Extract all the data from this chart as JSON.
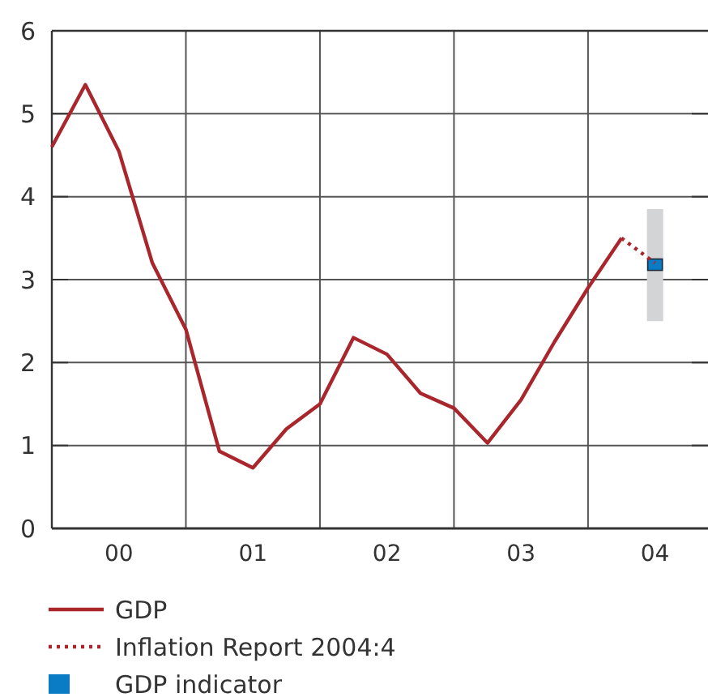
{
  "chart_data": {
    "type": "line",
    "categories": [
      null,
      null,
      "00",
      null,
      null,
      null,
      "01",
      null,
      null,
      null,
      "02",
      null,
      null,
      null,
      "03",
      null,
      null,
      null,
      "04",
      null
    ],
    "ylim": [
      0,
      6
    ],
    "yticks": [
      0,
      1,
      2,
      3,
      4,
      5,
      6
    ],
    "grid": true,
    "legend": "bottom",
    "series": [
      {
        "name": "GDP",
        "color": "#a8262c",
        "line_style": "solid",
        "values": [
          4.6,
          5.35,
          4.55,
          3.2,
          2.4,
          0.93,
          0.73,
          1.2,
          1.5,
          2.3,
          2.1,
          1.63,
          1.45,
          1.03,
          1.55,
          2.25,
          2.9,
          3.5,
          null,
          null
        ]
      },
      {
        "name": "Inflation Report 2004:4",
        "color": "#a8262c",
        "line_style": "dotted",
        "values": [
          null,
          null,
          null,
          null,
          null,
          null,
          null,
          null,
          null,
          null,
          null,
          null,
          null,
          null,
          null,
          null,
          null,
          3.5,
          3.2,
          null
        ]
      },
      {
        "name": "GDP indicator",
        "type": "scatter",
        "marker": "square",
        "color": "#0a7cc6",
        "values": [
          null,
          null,
          null,
          null,
          null,
          null,
          null,
          null,
          null,
          null,
          null,
          null,
          null,
          null,
          null,
          null,
          null,
          null,
          3.18,
          null
        ],
        "errors": [
          null,
          null,
          null,
          null,
          null,
          null,
          null,
          null,
          null,
          null,
          null,
          null,
          null,
          null,
          null,
          null,
          null,
          null,
          [
            2.5,
            3.85
          ],
          null
        ]
      }
    ]
  }
}
